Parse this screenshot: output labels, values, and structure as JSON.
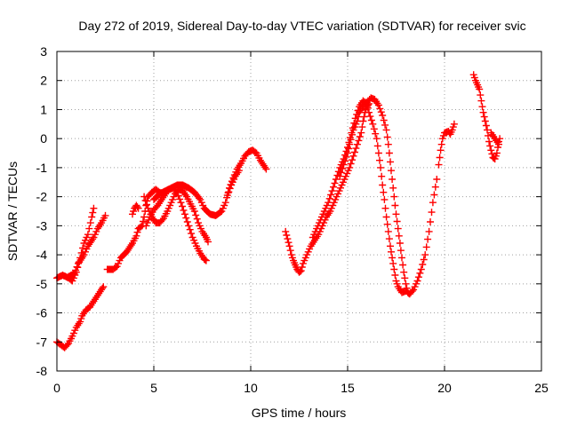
{
  "chart_data": {
    "type": "scatter",
    "title": "Day 272 of 2019, Sidereal Day-to-day VTEC variation (SDTVAR) for receiver svic",
    "xlabel": "GPS time / hours",
    "ylabel": "SDTVAR / TECUs",
    "xlim": [
      0,
      25
    ],
    "ylim": [
      -8,
      3
    ],
    "x_ticks": [
      0,
      5,
      10,
      15,
      20,
      25
    ],
    "x_tick_labels": [
      "0",
      "5",
      "10",
      "15",
      "20",
      "25"
    ],
    "y_ticks": [
      -8,
      -7,
      -6,
      -5,
      -4,
      -3,
      -2,
      -1,
      0,
      1,
      2,
      3
    ],
    "y_tick_labels": [
      "-8",
      "-7",
      "-6",
      "-5",
      "-4",
      "-3",
      "-2",
      "-1",
      "0",
      "1",
      "2",
      "3"
    ],
    "grid": true,
    "marker": "plus",
    "colors": {
      "series": "#ff0000",
      "grid": "#a0a0a0",
      "axis": "#000000"
    },
    "series": [
      {
        "name": "seg-a",
        "points": [
          [
            0.0,
            -4.8
          ],
          [
            0.3,
            -4.7
          ],
          [
            0.6,
            -4.8
          ],
          [
            0.8,
            -4.9
          ],
          [
            1.0,
            -4.6
          ],
          [
            1.2,
            -4.1
          ],
          [
            1.4,
            -3.6
          ],
          [
            1.6,
            -3.3
          ],
          [
            1.8,
            -2.7
          ],
          [
            1.9,
            -2.4
          ]
        ]
      },
      {
        "name": "seg-b",
        "points": [
          [
            0.6,
            -4.75
          ],
          [
            0.9,
            -4.65
          ],
          [
            1.1,
            -4.3
          ],
          [
            1.4,
            -4.0
          ],
          [
            1.6,
            -3.7
          ],
          [
            1.9,
            -3.4
          ],
          [
            2.1,
            -3.1
          ],
          [
            2.3,
            -2.9
          ],
          [
            2.5,
            -2.65
          ]
        ]
      },
      {
        "name": "seg-c",
        "points": [
          [
            0.0,
            -7.0
          ],
          [
            0.2,
            -7.1
          ],
          [
            0.4,
            -7.2
          ],
          [
            0.6,
            -7.05
          ],
          [
            0.8,
            -6.8
          ],
          [
            1.0,
            -6.5
          ],
          [
            1.2,
            -6.3
          ],
          [
            1.3,
            -6.1
          ],
          [
            1.5,
            -5.9
          ],
          [
            1.7,
            -5.8
          ],
          [
            1.9,
            -5.6
          ],
          [
            2.1,
            -5.4
          ],
          [
            2.3,
            -5.2
          ],
          [
            2.4,
            -5.1
          ]
        ]
      },
      {
        "name": "seg-d",
        "points": [
          [
            2.6,
            -4.5
          ],
          [
            2.9,
            -4.5
          ],
          [
            3.1,
            -4.4
          ],
          [
            3.3,
            -4.1
          ],
          [
            3.6,
            -3.9
          ],
          [
            3.9,
            -3.6
          ],
          [
            4.1,
            -3.35
          ],
          [
            4.2,
            -3.1
          ],
          [
            4.4,
            -3.0
          ],
          [
            4.5,
            -2.7
          ],
          [
            4.6,
            -2.3
          ],
          [
            4.7,
            -2.0
          ],
          [
            4.9,
            -1.85
          ],
          [
            5.1,
            -1.75
          ],
          [
            5.3,
            -1.85
          ],
          [
            5.5,
            -1.9
          ]
        ]
      },
      {
        "name": "seg-e",
        "points": [
          [
            3.9,
            -2.6
          ],
          [
            4.0,
            -2.4
          ],
          [
            4.1,
            -2.3
          ],
          [
            4.2,
            -2.4
          ]
        ]
      },
      {
        "name": "seg-f",
        "points": [
          [
            4.6,
            -3.0
          ],
          [
            4.8,
            -2.7
          ],
          [
            5.0,
            -2.45
          ],
          [
            5.2,
            -2.3
          ],
          [
            5.4,
            -2.1
          ],
          [
            5.6,
            -1.9
          ],
          [
            5.8,
            -1.75
          ],
          [
            6.0,
            -1.7
          ],
          [
            6.2,
            -1.85
          ],
          [
            6.4,
            -2.2
          ],
          [
            6.6,
            -2.6
          ],
          [
            6.8,
            -3.0
          ],
          [
            7.0,
            -3.4
          ],
          [
            7.2,
            -3.7
          ],
          [
            7.4,
            -3.95
          ],
          [
            7.6,
            -4.15
          ],
          [
            7.7,
            -4.2
          ]
        ]
      },
      {
        "name": "seg-g",
        "points": [
          [
            4.5,
            -2.0
          ],
          [
            4.7,
            -2.4
          ],
          [
            4.9,
            -2.7
          ],
          [
            5.1,
            -2.9
          ],
          [
            5.3,
            -2.9
          ],
          [
            5.5,
            -2.75
          ],
          [
            5.7,
            -2.5
          ],
          [
            5.9,
            -2.2
          ],
          [
            6.1,
            -1.9
          ],
          [
            6.3,
            -1.75
          ],
          [
            6.5,
            -1.8
          ],
          [
            6.7,
            -2.0
          ],
          [
            6.9,
            -2.25
          ],
          [
            7.1,
            -2.5
          ],
          [
            7.3,
            -2.9
          ],
          [
            7.5,
            -3.2
          ],
          [
            7.7,
            -3.4
          ],
          [
            7.8,
            -3.55
          ]
        ]
      },
      {
        "name": "seg-h",
        "points": [
          [
            5.0,
            -2.1
          ],
          [
            5.3,
            -1.9
          ],
          [
            5.6,
            -1.8
          ],
          [
            5.9,
            -1.7
          ],
          [
            6.2,
            -1.6
          ],
          [
            6.5,
            -1.6
          ],
          [
            6.8,
            -1.7
          ],
          [
            7.1,
            -1.85
          ],
          [
            7.4,
            -2.1
          ],
          [
            7.6,
            -2.4
          ],
          [
            7.9,
            -2.6
          ],
          [
            8.2,
            -2.65
          ],
          [
            8.5,
            -2.5
          ],
          [
            8.7,
            -2.2
          ],
          [
            8.9,
            -1.7
          ],
          [
            9.1,
            -1.35
          ],
          [
            9.3,
            -1.05
          ],
          [
            9.5,
            -0.85
          ],
          [
            9.7,
            -0.6
          ],
          [
            9.9,
            -0.45
          ],
          [
            10.1,
            -0.4
          ],
          [
            10.3,
            -0.5
          ],
          [
            10.5,
            -0.75
          ],
          [
            10.8,
            -1.05
          ]
        ]
      },
      {
        "name": "seg-i",
        "points": [
          [
            8.8,
            -1.95
          ],
          [
            9.0,
            -1.6
          ],
          [
            9.2,
            -1.3
          ],
          [
            9.4,
            -1.1
          ]
        ]
      },
      {
        "name": "seg-j",
        "points": [
          [
            11.8,
            -3.2
          ],
          [
            11.9,
            -3.45
          ],
          [
            12.0,
            -3.7
          ],
          [
            12.1,
            -4.0
          ],
          [
            12.2,
            -4.2
          ],
          [
            12.3,
            -4.35
          ],
          [
            12.4,
            -4.5
          ],
          [
            12.5,
            -4.6
          ],
          [
            12.6,
            -4.55
          ],
          [
            12.7,
            -4.3
          ],
          [
            12.9,
            -4.0
          ],
          [
            13.1,
            -3.7
          ],
          [
            13.3,
            -3.5
          ],
          [
            13.5,
            -3.3
          ],
          [
            13.7,
            -3.0
          ],
          [
            13.9,
            -2.7
          ],
          [
            14.1,
            -2.5
          ],
          [
            14.3,
            -2.2
          ],
          [
            14.5,
            -1.9
          ],
          [
            14.7,
            -1.6
          ],
          [
            14.9,
            -1.3
          ],
          [
            15.1,
            -1.0
          ],
          [
            15.3,
            -0.6
          ],
          [
            15.5,
            -0.2
          ],
          [
            15.7,
            0.2
          ],
          [
            15.8,
            0.6
          ],
          [
            15.9,
            0.9
          ],
          [
            16.0,
            1.1
          ],
          [
            16.1,
            1.2
          ]
        ]
      },
      {
        "name": "seg-k",
        "points": [
          [
            13.2,
            -3.4
          ],
          [
            13.4,
            -3.1
          ],
          [
            13.6,
            -2.8
          ],
          [
            13.8,
            -2.5
          ],
          [
            14.0,
            -2.2
          ],
          [
            14.2,
            -1.8
          ],
          [
            14.4,
            -1.4
          ],
          [
            14.6,
            -1.0
          ],
          [
            14.8,
            -0.7
          ],
          [
            15.0,
            -0.3
          ],
          [
            15.2,
            0.2
          ],
          [
            15.4,
            0.7
          ],
          [
            15.6,
            1.1
          ],
          [
            15.8,
            1.3
          ],
          [
            16.0,
            1.2
          ],
          [
            16.1,
            0.9
          ],
          [
            16.3,
            0.5
          ],
          [
            16.5,
            0.0
          ],
          [
            16.6,
            -0.5
          ],
          [
            16.7,
            -1.0
          ],
          [
            16.8,
            -1.6
          ],
          [
            16.9,
            -2.1
          ],
          [
            17.0,
            -2.7
          ],
          [
            17.1,
            -3.2
          ],
          [
            17.2,
            -3.7
          ],
          [
            17.3,
            -4.1
          ],
          [
            17.4,
            -4.5
          ],
          [
            17.5,
            -4.9
          ],
          [
            17.6,
            -5.1
          ],
          [
            17.8,
            -5.3
          ],
          [
            18.0,
            -5.25
          ]
        ]
      },
      {
        "name": "seg-l",
        "points": [
          [
            14.6,
            -1.3
          ],
          [
            14.8,
            -0.9
          ],
          [
            15.0,
            -0.5
          ],
          [
            15.1,
            -0.2
          ],
          [
            15.3,
            0.3
          ],
          [
            15.5,
            0.6
          ],
          [
            15.6,
            0.9
          ],
          [
            15.8,
            1.1
          ],
          [
            16.0,
            1.25
          ],
          [
            16.2,
            1.4
          ],
          [
            16.4,
            1.35
          ],
          [
            16.6,
            1.15
          ],
          [
            16.8,
            0.8
          ],
          [
            17.0,
            0.3
          ],
          [
            17.1,
            -0.2
          ],
          [
            17.2,
            -0.8
          ],
          [
            17.3,
            -1.4
          ],
          [
            17.4,
            -2.0
          ],
          [
            17.5,
            -2.6
          ],
          [
            17.6,
            -3.1
          ],
          [
            17.7,
            -3.6
          ],
          [
            17.8,
            -4.1
          ],
          [
            17.9,
            -4.6
          ],
          [
            18.0,
            -5.0
          ],
          [
            18.1,
            -5.3
          ],
          [
            18.2,
            -5.35
          ],
          [
            18.4,
            -5.2
          ],
          [
            18.6,
            -4.9
          ],
          [
            18.8,
            -4.5
          ],
          [
            19.0,
            -4.0
          ],
          [
            19.2,
            -3.2
          ],
          [
            19.4,
            -2.2
          ],
          [
            19.6,
            -1.4
          ]
        ]
      },
      {
        "name": "seg-m",
        "points": [
          [
            19.7,
            -0.9
          ],
          [
            19.8,
            -0.4
          ],
          [
            19.9,
            0.0
          ],
          [
            20.0,
            0.2
          ],
          [
            20.2,
            0.25
          ],
          [
            20.3,
            0.15
          ],
          [
            20.4,
            0.3
          ],
          [
            20.5,
            0.5
          ]
        ]
      },
      {
        "name": "seg-n",
        "points": [
          [
            21.5,
            2.2
          ],
          [
            21.6,
            2.0
          ],
          [
            21.7,
            1.85
          ],
          [
            21.8,
            1.7
          ],
          [
            21.9,
            1.3
          ],
          [
            22.0,
            0.9
          ],
          [
            22.1,
            0.6
          ],
          [
            22.2,
            0.3
          ],
          [
            22.3,
            -0.1
          ],
          [
            22.4,
            -0.4
          ],
          [
            22.5,
            -0.65
          ],
          [
            22.6,
            -0.7
          ],
          [
            22.7,
            -0.5
          ],
          [
            22.8,
            -0.1
          ],
          [
            22.85,
            0.0
          ]
        ]
      },
      {
        "name": "seg-o",
        "points": [
          [
            22.4,
            0.2
          ],
          [
            22.6,
            0.0
          ],
          [
            22.8,
            -0.2
          ]
        ]
      }
    ]
  }
}
